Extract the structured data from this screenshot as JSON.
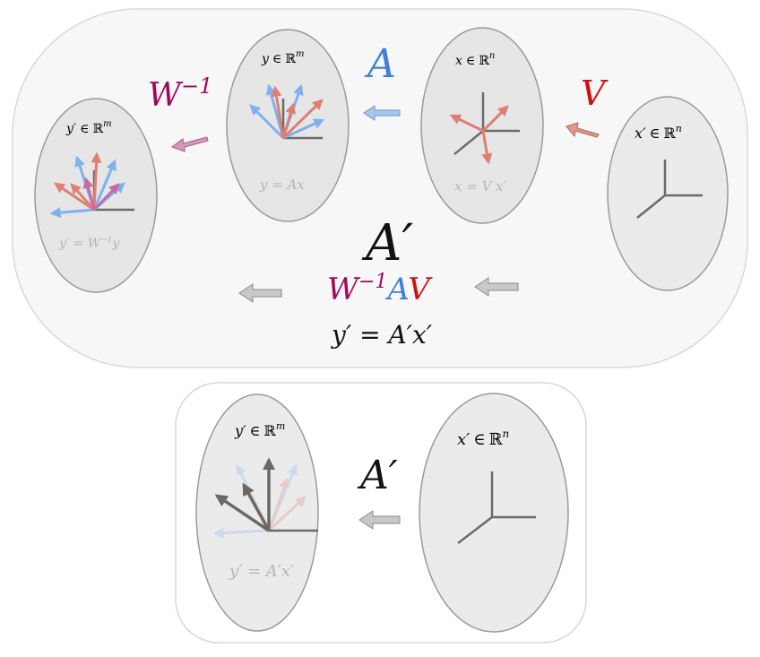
{
  "colors": {
    "blue": "#3f7fd9",
    "blue_arrow": "#7fb0f0",
    "red": "#cc1111",
    "red_arrow": "#de7f72",
    "purple": "#a0085f",
    "purple_arrow": "#c86aa5",
    "gray_arrow": "#6e6864",
    "axis": "#6b6b6b"
  },
  "top_panel": {
    "space_x_prime": {
      "var": "x′",
      "in": "∈",
      "field": "ℝ",
      "exp": "n"
    },
    "space_x": {
      "var": "x",
      "in": "∈",
      "field": "ℝ",
      "exp": "n",
      "relation": "x = V x′"
    },
    "space_y": {
      "var": "y",
      "in": "∈",
      "field": "ℝ",
      "exp": "m",
      "relation": "y = Ax"
    },
    "space_y_prime": {
      "var": "y′",
      "in": "∈",
      "field": "ℝ",
      "exp": "m",
      "relation": "y′ = W",
      "relation_exp": "−1",
      "relation_tail": "y"
    },
    "label_V": "V",
    "label_A": "A",
    "label_W_inv": "W",
    "label_W_inv_exp": "−1",
    "composite_title": "A′",
    "composite_W": "W",
    "composite_W_exp": "−1",
    "composite_A": "A",
    "composite_V": "V",
    "equation": "y′ = A′x′"
  },
  "bottom_panel": {
    "space_x_prime": {
      "var": "x′",
      "in": "∈",
      "field": "ℝ",
      "exp": "n"
    },
    "space_y_prime": {
      "var": "y′",
      "in": "∈",
      "field": "ℝ",
      "exp": "m",
      "relation": "y′ = A′x′"
    },
    "label_A_prime": "A′"
  }
}
